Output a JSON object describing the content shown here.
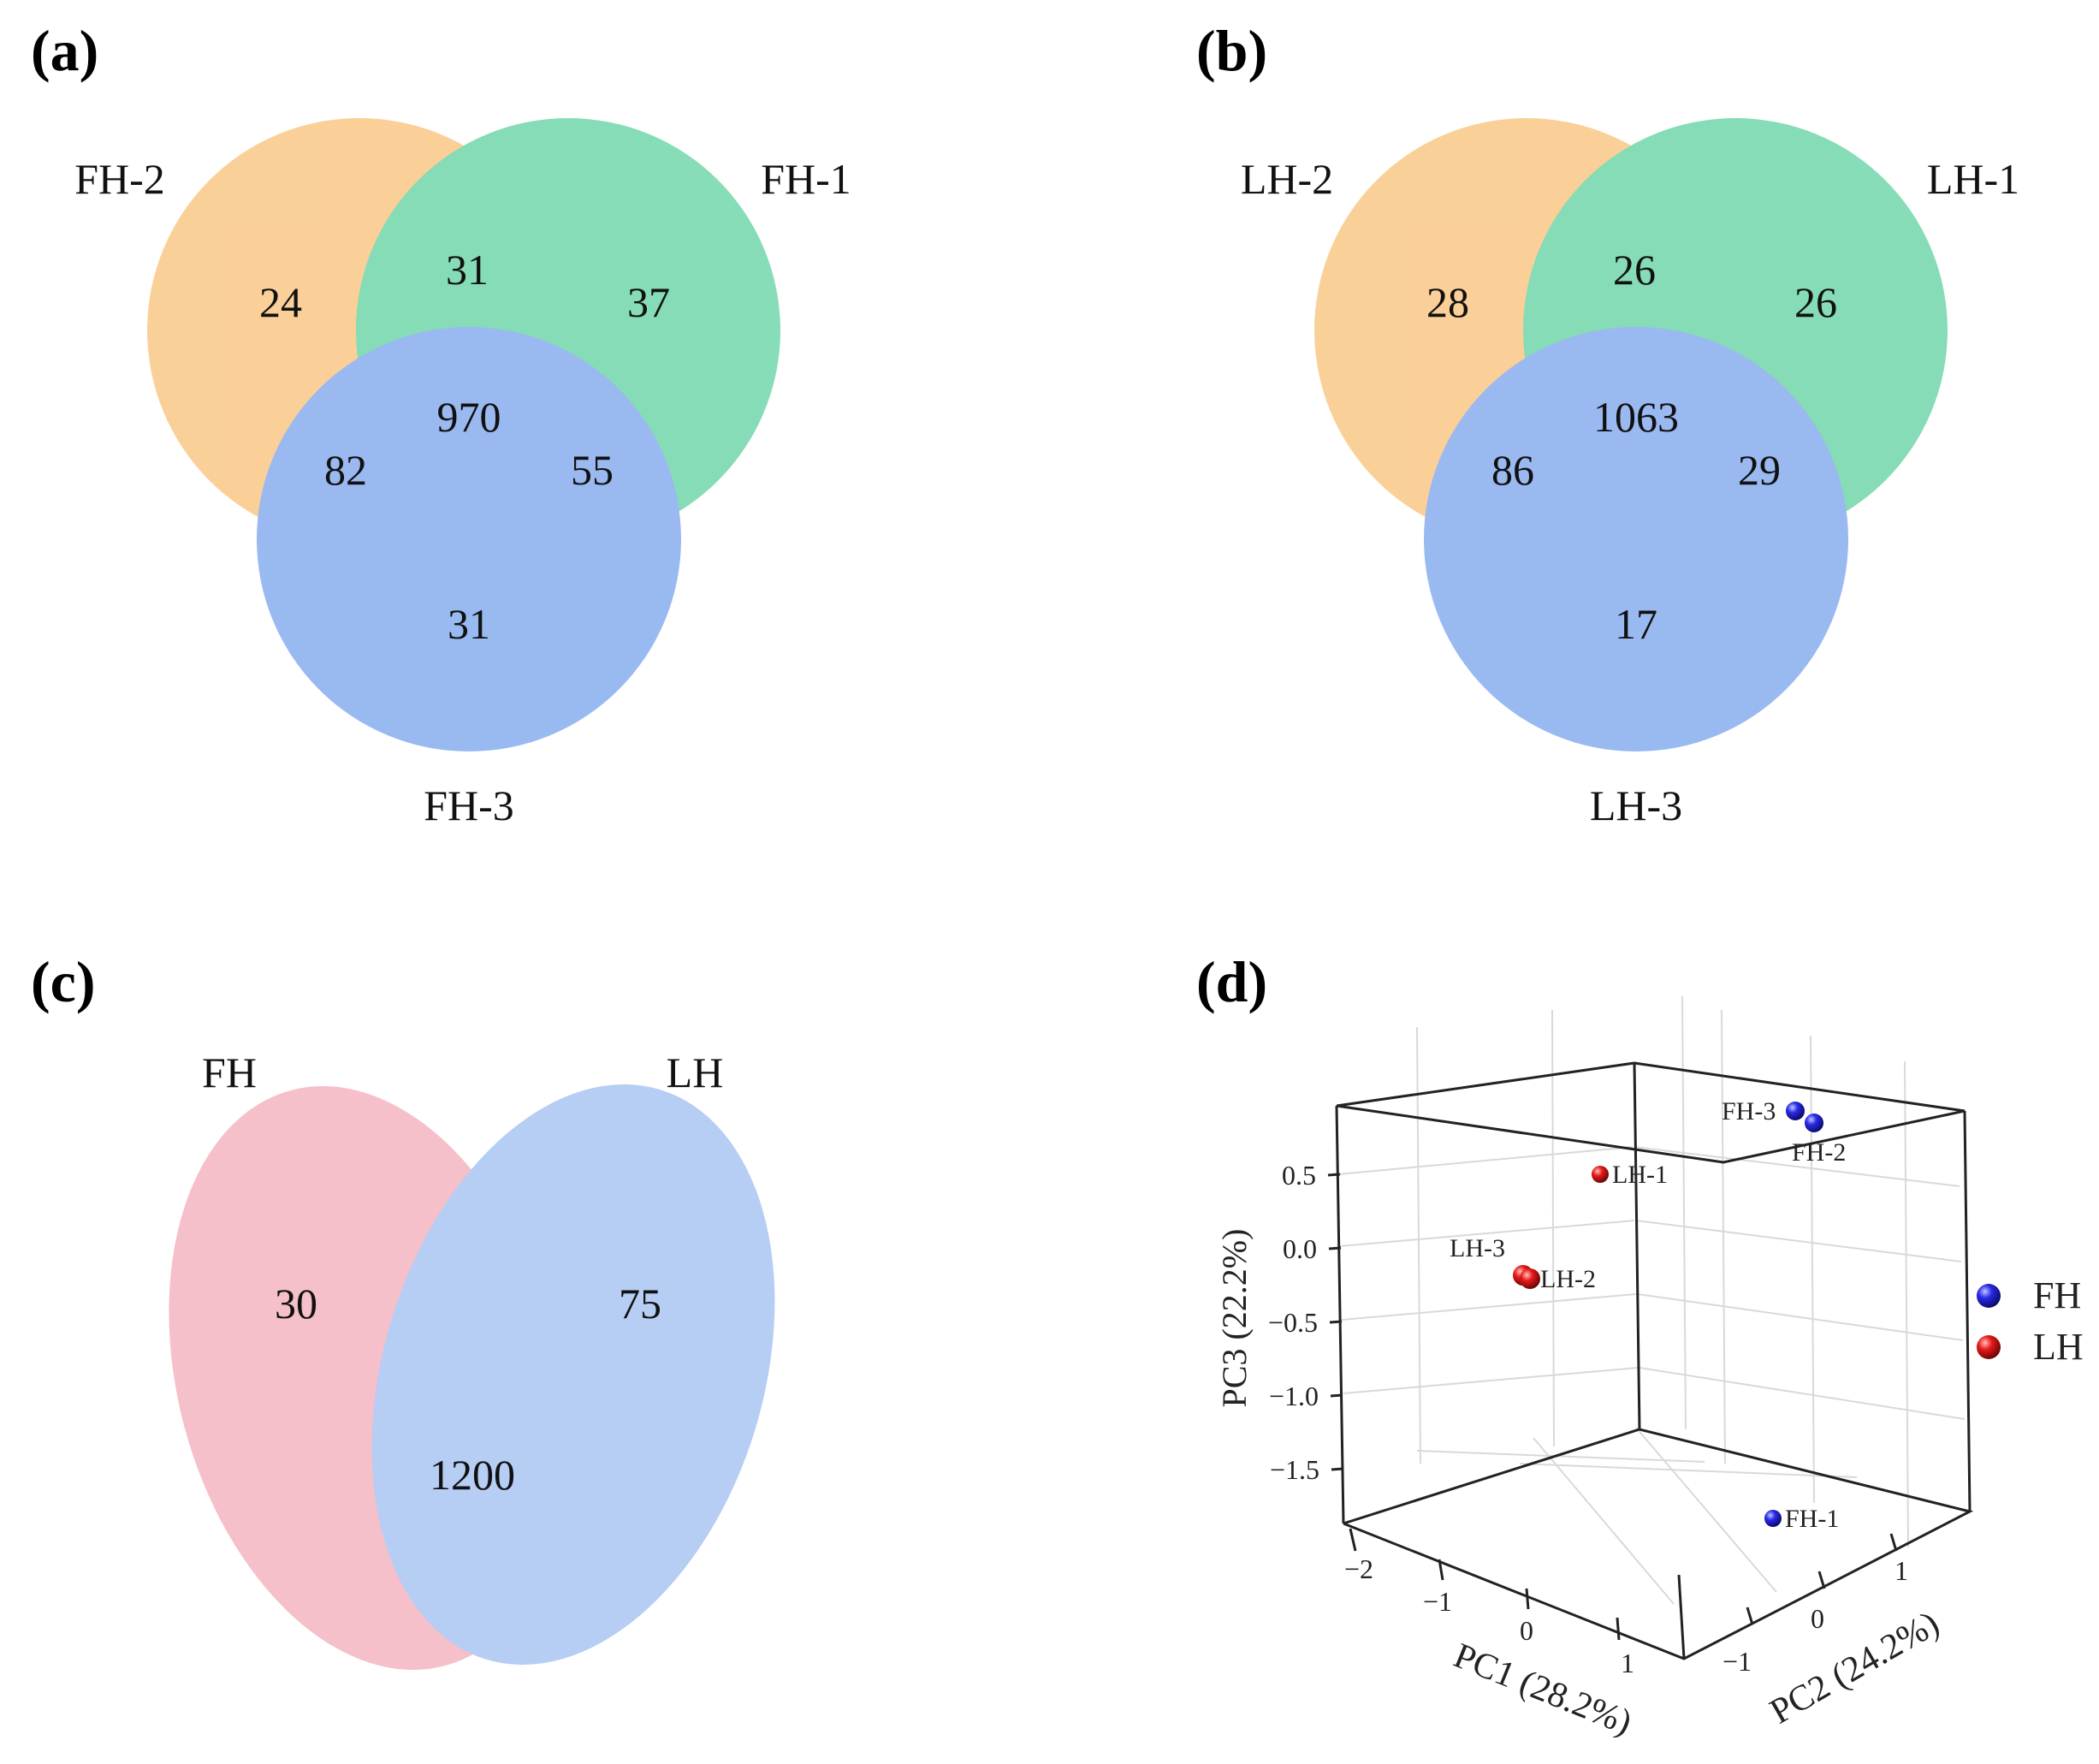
{
  "panels": {
    "a": {
      "label": "(a)",
      "sets": [
        "FH-2",
        "FH-1",
        "FH-3"
      ],
      "regions": {
        "only_2": "24",
        "only_1": "37",
        "only_3": "31",
        "s2_s1": "31",
        "s2_s3": "82",
        "s1_s3": "55",
        "all": "970"
      }
    },
    "b": {
      "label": "(b)",
      "sets": [
        "LH-2",
        "LH-1",
        "LH-3"
      ],
      "regions": {
        "only_2": "28",
        "only_1": "26",
        "only_3": "17",
        "s2_s1": "26",
        "s2_s3": "86",
        "s1_s3": "29",
        "all": "1063"
      }
    },
    "c": {
      "label": "(c)",
      "sets": [
        "FH",
        "LH"
      ],
      "regions": {
        "only_fh": "30",
        "only_lh": "75",
        "both": "1200"
      }
    },
    "d": {
      "label": "(d)",
      "axes": {
        "x_label": "PC1 (28.2%)",
        "y_label": "PC2 (24.2%)",
        "z_label": "PC3 (22.2%)",
        "x_ticks": [
          "−2",
          "−1",
          "0",
          "1"
        ],
        "y_ticks": [
          "−1",
          "0",
          "1"
        ],
        "z_ticks": [
          "0.5",
          "0.0",
          "−0.5",
          "−1.0",
          "−1.5"
        ]
      },
      "legend": [
        {
          "name": "FH",
          "color": "#1a1adc"
        },
        {
          "name": "LH",
          "color": "#e01818"
        }
      ],
      "points": [
        {
          "label": "FH-3",
          "group": "FH"
        },
        {
          "label": "FH-2",
          "group": "FH"
        },
        {
          "label": "FH-1",
          "group": "FH"
        },
        {
          "label": "LH-1",
          "group": "LH"
        },
        {
          "label": "LH-3",
          "group": "LH"
        },
        {
          "label": "LH-2",
          "group": "LH"
        }
      ]
    }
  },
  "colors": {
    "orange": "#f7b35a",
    "green": "#3cc88b",
    "blue": "#5b8fe8",
    "pink": "#ee8d9e",
    "lightblue": "#7ba5ec"
  }
}
